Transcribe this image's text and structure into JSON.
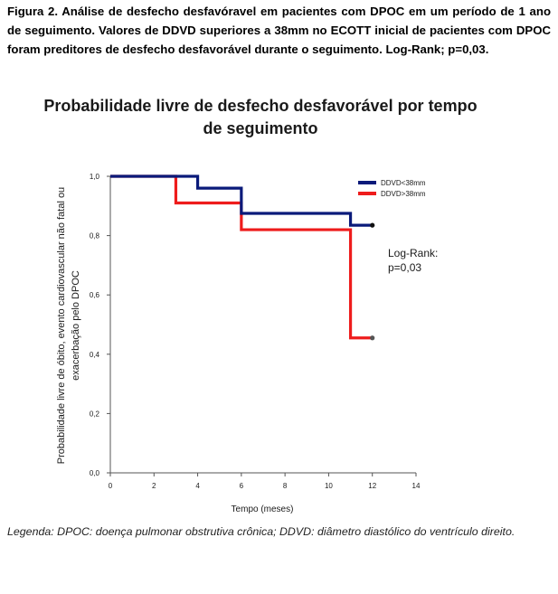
{
  "caption": "Figura 2. Análise de desfecho desfavóravel em pacientes com DPOC em um período de 1 ano de seguimento. Valores de DDVD superiores a 38mm no ECOTT inicial de pacientes com DPOC foram preditores de desfecho desfavorável durante o seguimento. Log-Rank; p=0,03.",
  "legend_note": "Legenda: DPOC: doença pulmonar obstrutiva crônica; DDVD: diâmetro diastólico do ventrículo direito.",
  "chart_data": {
    "type": "line",
    "title_line1": "Probabilidade livre de desfecho desfavorável por tempo",
    "title_line2": "de seguimento",
    "xlabel": "Tempo (meses)",
    "ylabel_line1": "Probabilidade livre de óbito, evento cardiovascular não fatal ou",
    "ylabel_line2": "exacerbação pelo DPOC",
    "xlim": [
      0,
      14
    ],
    "ylim": [
      0,
      1
    ],
    "x_ticks": [
      0,
      2,
      4,
      6,
      8,
      10,
      12,
      14
    ],
    "x_tick_labels": [
      "0",
      "2",
      "4",
      "6",
      "8",
      "10",
      "12",
      "14"
    ],
    "y_ticks": [
      0,
      0.2,
      0.4,
      0.6,
      0.8,
      1.0
    ],
    "y_tick_labels": [
      "0,0",
      "0,2",
      "0,4",
      "0,6",
      "0,8",
      "1,0"
    ],
    "grid": false,
    "legend_position": "top-right",
    "annotation_line1": "Log-Rank:",
    "annotation_line2": "p=0,03",
    "series": [
      {
        "name": "DDVD<38mm",
        "color": "#0a1a7a",
        "end_dot_color": "#111111",
        "steps": [
          [
            0,
            1.0
          ],
          [
            4,
            0.96
          ],
          [
            6,
            0.875
          ],
          [
            11,
            0.835
          ]
        ],
        "end_x": 12
      },
      {
        "name": "DDVD>38mm",
        "color": "#ee1c1c",
        "end_dot_color": "#555555",
        "steps": [
          [
            0,
            1.0
          ],
          [
            3,
            0.91
          ],
          [
            6,
            0.82
          ],
          [
            11,
            0.455
          ]
        ],
        "end_x": 12
      }
    ]
  }
}
